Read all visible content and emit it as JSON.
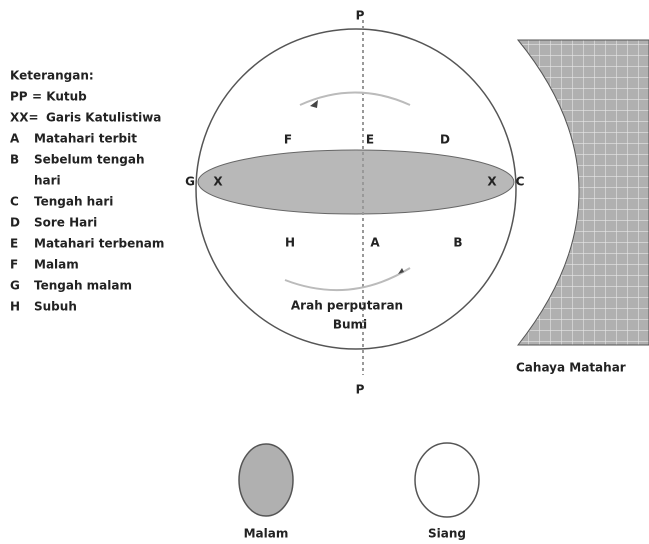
{
  "legend": {
    "title": "Keterangan:",
    "items": [
      {
        "key": "PP",
        "text": "= Kutub"
      },
      {
        "key": "XX=",
        "text": "Garis Katulistiwa"
      },
      {
        "key": "A",
        "text": "Matahari terbit"
      },
      {
        "key": "B",
        "text": "Sebelum tengah",
        "text2": "hari"
      },
      {
        "key": "C",
        "text": "Tengah hari"
      },
      {
        "key": "D",
        "text": "Sore Hari"
      },
      {
        "key": "E",
        "text": "Matahari terbenam"
      },
      {
        "key": "F",
        "text": "Malam"
      },
      {
        "key": "G",
        "text": "Tengah malam"
      },
      {
        "key": "H",
        "text": "Subuh"
      }
    ]
  },
  "globe": {
    "pole_top": "P",
    "pole_bottom": "P",
    "labels": {
      "E": "E",
      "F": "F",
      "D": "D",
      "G": "G",
      "X_left": "X",
      "X_right": "X",
      "C": "C",
      "H": "H",
      "A": "A",
      "B": "B"
    },
    "rotation_label": [
      "Arah perputaran",
      "Bumi"
    ]
  },
  "sunlight_label": "Cahaya Matahar",
  "examples": {
    "night": "Malam",
    "day": "Siang"
  }
}
